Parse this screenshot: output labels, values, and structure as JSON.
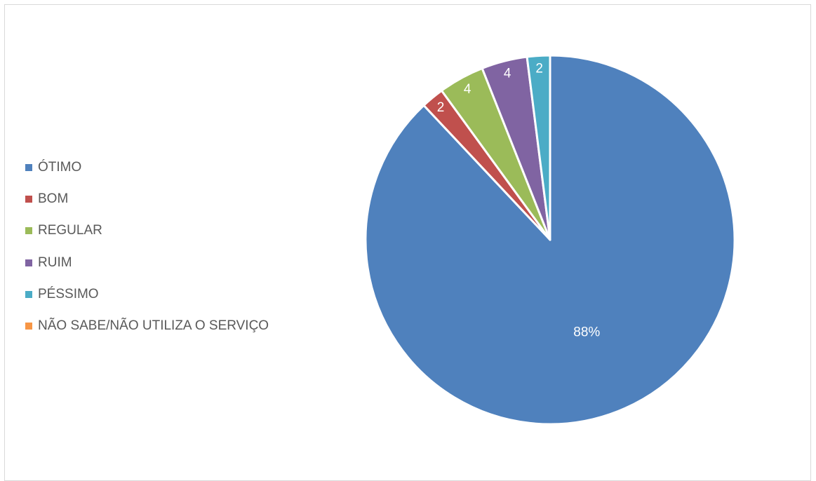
{
  "chart_data": {
    "type": "pie",
    "categories": [
      "ÓTIMO",
      "BOM",
      "REGULAR",
      "RUIM",
      "PÉSSIMO",
      "NÃO SABE/NÃO UTILIZA O SERVIÇO"
    ],
    "values": [
      88,
      2,
      4,
      4,
      2,
      0
    ],
    "data_labels": [
      "88%",
      "2",
      "4",
      "4",
      "2",
      ""
    ],
    "colors": [
      "#4f81bd",
      "#c0504d",
      "#9bbb59",
      "#8064a2",
      "#4bacc6",
      "#f79646"
    ],
    "legend_position": "left",
    "title": "",
    "start_angle_deg": 0,
    "direction": "clockwise"
  }
}
